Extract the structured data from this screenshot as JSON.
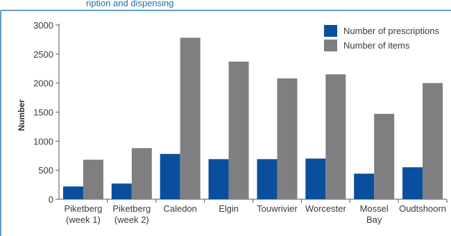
{
  "caption": "ription and dispensing",
  "colors": {
    "prescriptions": "#0a4f9e",
    "items": "#7f7f82",
    "frame": "#2e7db8",
    "axis": "#555555"
  },
  "chart_data": {
    "type": "bar",
    "title": "",
    "xlabel": "",
    "ylabel": "Number",
    "ylim": [
      0,
      3000
    ],
    "yticks": [
      0,
      500,
      1000,
      1500,
      2000,
      2500,
      3000
    ],
    "grid": false,
    "legend_position": "top-right",
    "categories": [
      [
        "Piketberg",
        "(week 1)"
      ],
      [
        "Piketberg",
        "(week 2)"
      ],
      [
        "Caledon"
      ],
      [
        "Elgin"
      ],
      [
        "Touwrivier"
      ],
      [
        "Worcester"
      ],
      [
        "Mossel",
        "Bay"
      ],
      [
        "Oudtshoorn"
      ]
    ],
    "series": [
      {
        "name": "Number of prescriptions",
        "values": [
          220,
          270,
          780,
          690,
          690,
          700,
          440,
          550
        ]
      },
      {
        "name": "Number of items",
        "values": [
          680,
          880,
          2780,
          2370,
          2080,
          2150,
          1470,
          2000
        ]
      }
    ]
  }
}
